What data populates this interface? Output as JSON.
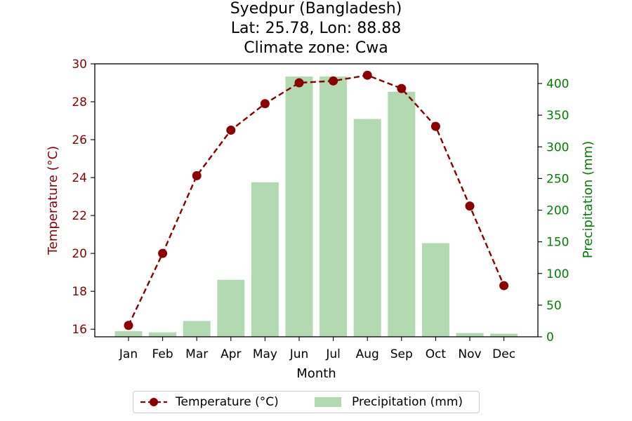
{
  "title_lines": [
    "Syedpur (Bangladesh)",
    "Lat: 25.78, Lon: 88.88",
    "Climate zone: Cwa"
  ],
  "colors": {
    "temperature": "#8b0000",
    "precipitation": "#008000",
    "precip_bar": "#b2d9b2"
  },
  "chart_data": {
    "type": "bar+line",
    "categories": [
      "Jan",
      "Feb",
      "Mar",
      "Apr",
      "May",
      "Jun",
      "Jul",
      "Aug",
      "Sep",
      "Oct",
      "Nov",
      "Dec"
    ],
    "xlabel": "Month",
    "series": [
      {
        "name": "Temperature (°C)",
        "type": "line",
        "axis": "left",
        "values": [
          16.2,
          20.0,
          24.1,
          26.5,
          27.9,
          29.0,
          29.1,
          29.4,
          28.7,
          26.7,
          22.5,
          18.3
        ]
      },
      {
        "name": "Precipitation (mm)",
        "type": "bar",
        "axis": "right",
        "values": [
          9,
          7,
          25,
          90,
          244,
          411,
          411,
          344,
          387,
          148,
          6,
          5
        ]
      }
    ],
    "y_left": {
      "label": "Temperature (°C)",
      "lim": [
        15.6,
        30.0
      ],
      "ticks": [
        16,
        18,
        20,
        22,
        24,
        26,
        28,
        30
      ]
    },
    "y_right": {
      "label": "Precipitation (mm)",
      "lim": [
        0,
        400
      ],
      "ticks": [
        0,
        50,
        100,
        150,
        200,
        250,
        300,
        350,
        400
      ]
    },
    "legend": {
      "placement": "bottom-center",
      "entries": [
        "Temperature (°C)",
        "Precipitation (mm)"
      ]
    },
    "grid": false
  }
}
